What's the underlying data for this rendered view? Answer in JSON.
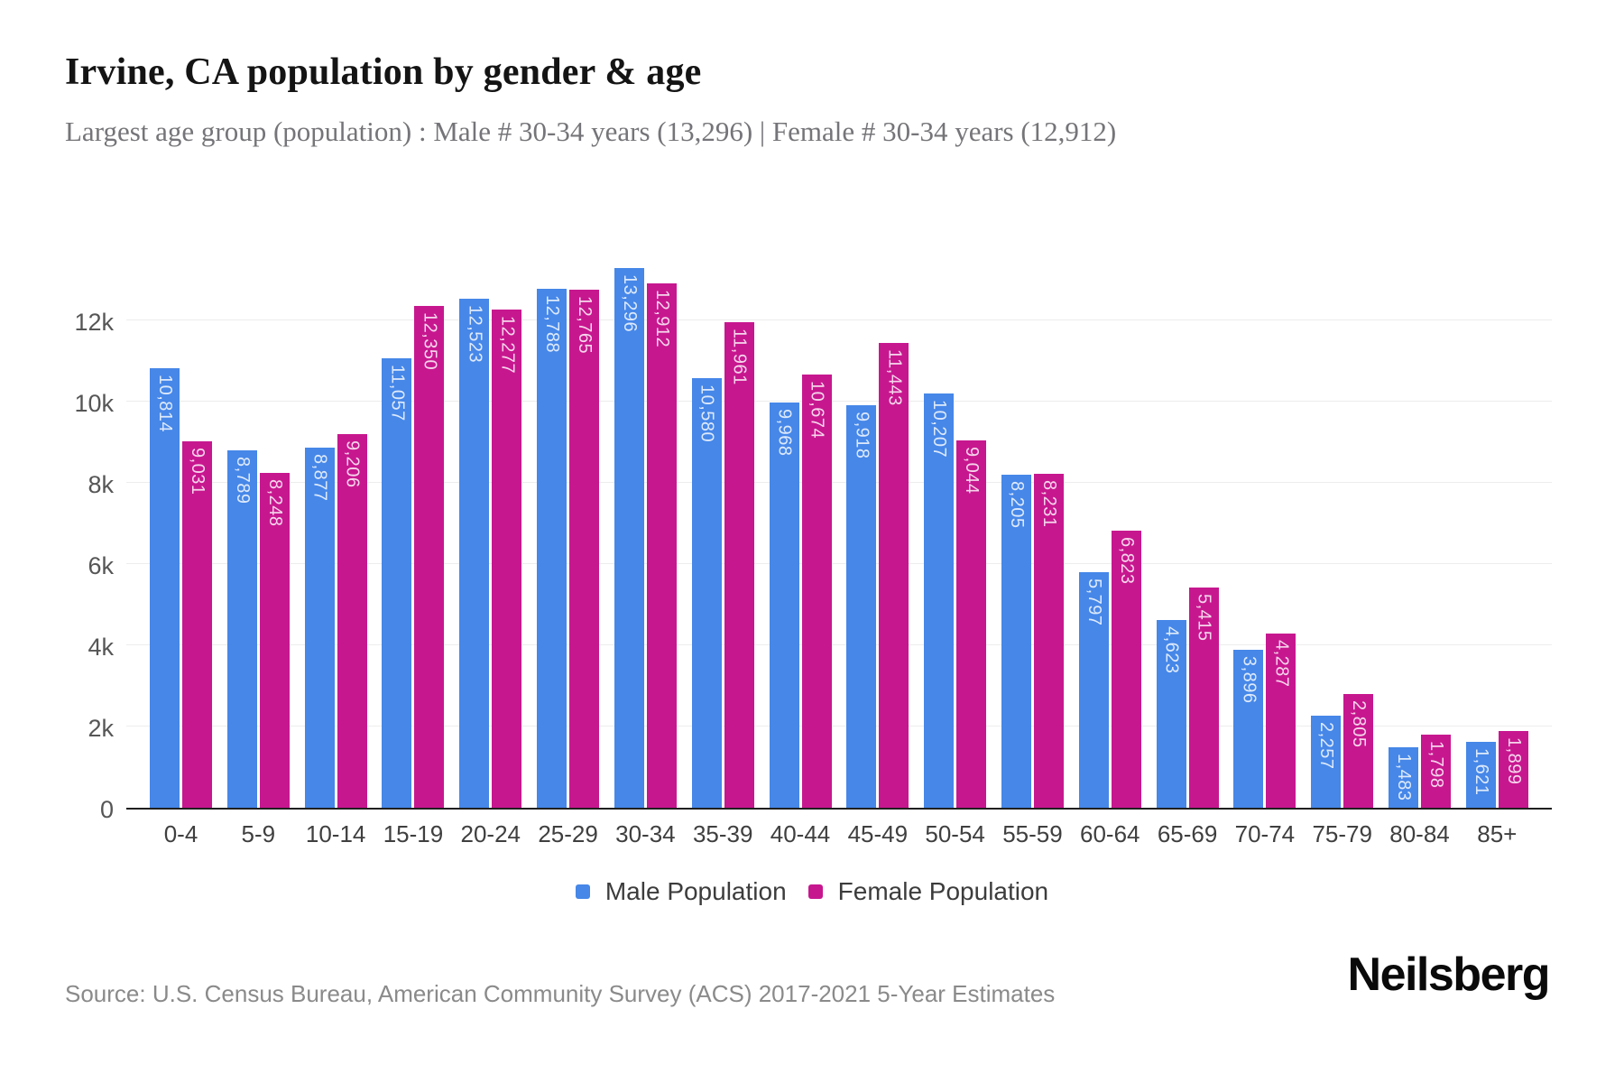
{
  "header": {
    "title": "Irvine, CA population by gender & age",
    "subtitle": "Largest age group (population) : Male # 30-34 years (13,296) | Female # 30-34 years (12,912)"
  },
  "chart_data": {
    "type": "bar",
    "title": "Irvine, CA population by gender & age",
    "xlabel": "",
    "ylabel": "",
    "categories": [
      "0-4",
      "5-9",
      "10-14",
      "15-19",
      "20-24",
      "25-29",
      "30-34",
      "35-39",
      "40-44",
      "45-49",
      "50-54",
      "55-59",
      "60-64",
      "65-69",
      "70-74",
      "75-79",
      "80-84",
      "85+"
    ],
    "series": [
      {
        "name": "Male Population",
        "color": "#4687e8",
        "values": [
          10814,
          8789,
          8877,
          11057,
          12523,
          12788,
          13296,
          10580,
          9968,
          9918,
          10207,
          8205,
          5797,
          4623,
          3896,
          2257,
          1483,
          1621
        ]
      },
      {
        "name": "Female Population",
        "color": "#c7178f",
        "values": [
          9031,
          8248,
          9206,
          12350,
          12277,
          12765,
          12912,
          11961,
          10674,
          11443,
          9044,
          8231,
          6823,
          5415,
          4287,
          2805,
          1798,
          1899
        ]
      }
    ],
    "yticks": [
      {
        "value": 0,
        "label": "0"
      },
      {
        "value": 2000,
        "label": "2k"
      },
      {
        "value": 4000,
        "label": "4k"
      },
      {
        "value": 6000,
        "label": "6k"
      },
      {
        "value": 8000,
        "label": "8k"
      },
      {
        "value": 10000,
        "label": "10k"
      },
      {
        "value": 12000,
        "label": "12k"
      }
    ],
    "ylim": [
      0,
      13500
    ],
    "grid": true,
    "legend_position": "bottom",
    "bar_value_labels_visible": true
  },
  "footer": {
    "source": "Source: U.S. Census Bureau, American Community Survey (ACS) 2017-2021 5-Year Estimates",
    "brand": "Neilsberg"
  }
}
